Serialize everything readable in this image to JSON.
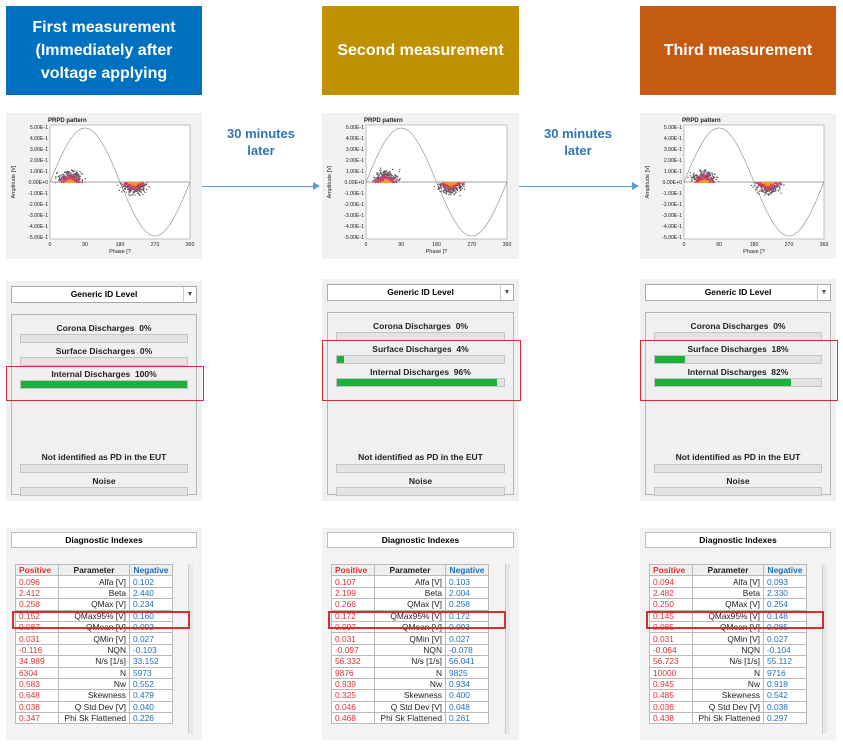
{
  "headers": [
    {
      "text": "First measurement (Immediately after voltage applying",
      "color": "#0070c0"
    },
    {
      "text": "Second measurement",
      "color": "#bf9000"
    },
    {
      "text": "Third measurement",
      "color": "#c55a11"
    }
  ],
  "arrows": [
    "30 minutes later",
    "30 minutes later"
  ],
  "prpd": {
    "title": "PRPD pattern",
    "ylabel": "Amplitude [V]",
    "xlabel": "Phase [?",
    "yticks": [
      "5.00E-1",
      "4.00E-1",
      "3.00E-1",
      "2.00E-1",
      "1.00E-1",
      "0.00E+0",
      "-1.00E-1",
      "-2.00E-1",
      "-3.00E-1",
      "-4.00E-1",
      "-5.00E-1"
    ],
    "xticks": [
      "0",
      "90",
      "180",
      "270",
      "360"
    ]
  },
  "id_panel": {
    "combo": "Generic ID Level",
    "corona": "Corona Discharges",
    "surface": "Surface Discharges",
    "internal": "Internal Discharges",
    "not_identified": "Not identified as PD in the EUT",
    "noise": "Noise"
  },
  "measurements": [
    {
      "corona_pct": "0%",
      "surface_pct": "0%",
      "internal_pct": "100%",
      "surface": 0,
      "internal": 1.0
    },
    {
      "corona_pct": "0%",
      "surface_pct": "4%",
      "internal_pct": "96%",
      "surface": 0.04,
      "internal": 0.96
    },
    {
      "corona_pct": "0%",
      "surface_pct": "18%",
      "internal_pct": "82%",
      "surface": 0.18,
      "internal": 0.82
    }
  ],
  "diag": {
    "title": "Diagnostic Indexes",
    "col_pos": "Positive",
    "col_par": "Parameter",
    "col_neg": "Negative",
    "params": [
      "Alfa [V]",
      "Beta",
      "QMax [V]",
      "QMax95% [V]",
      "QMean [V]",
      "QMin [V]",
      "NQN",
      "N/s [1/s]",
      "N",
      "Nw",
      "Skewness",
      "Q Std Dev [V]",
      "Phi Sk Flattened"
    ],
    "tables": [
      {
        "pos": [
          "0.096",
          "2.412",
          "0.258",
          "0.152",
          "0.087",
          "0.031",
          "-0.116",
          "34.989",
          "6304",
          "0.583",
          "0.648",
          "0.038",
          "0.347"
        ],
        "neg": [
          "0.102",
          "2.440",
          "0.234",
          "0.160",
          "0.092",
          "0.027",
          "-0.103",
          "33.152",
          "5973",
          "0.552",
          "0.479",
          "0.040",
          "0.226"
        ]
      },
      {
        "pos": [
          "0.107",
          "2.199",
          "0.266",
          "0.172",
          "0.097",
          "0.031",
          "-0.097",
          "56.332",
          "9876",
          "0.939",
          "0.325",
          "0.046",
          "0.468"
        ],
        "neg": [
          "0.103",
          "2.004",
          "0.258",
          "0.172",
          "0.093",
          "0.027",
          "-0.078",
          "56.041",
          "9825",
          "0.934",
          "0.400",
          "0.048",
          "0.261"
        ]
      },
      {
        "pos": [
          "0.094",
          "2.482",
          "0.250",
          "0.145",
          "0.085",
          "0.031",
          "-0.064",
          "56.723",
          "10000",
          "0.945",
          "0.485",
          "0.036",
          "0.438"
        ],
        "neg": [
          "0.093",
          "2.330",
          "0.254",
          "0.148",
          "0.085",
          "0.027",
          "-0.104",
          "55.112",
          "9716",
          "0.918",
          "0.542",
          "0.038",
          "0.297"
        ]
      }
    ]
  }
}
